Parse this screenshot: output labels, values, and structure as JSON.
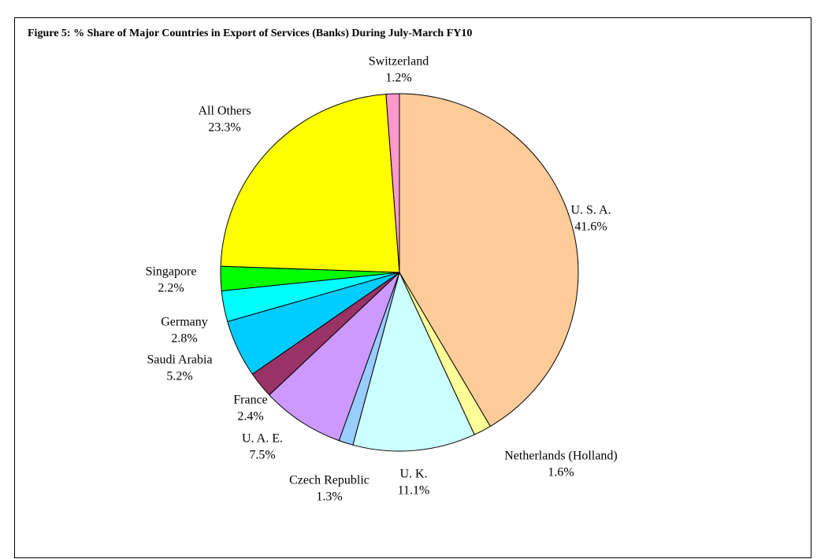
{
  "chart_data": {
    "type": "pie",
    "title": "Figure 5: % Share of Major Countries in Export of Services (Banks) During July-March FY10",
    "categories": [
      "U. S. A.",
      "Netherlands (Holland)",
      "U. K.",
      "Czech Republic",
      "U. A. E.",
      "France",
      "Saudi Arabia",
      "Germany",
      "Singapore",
      "All Others",
      "Switzerland"
    ],
    "values": [
      41.6,
      1.6,
      11.1,
      1.3,
      7.5,
      2.4,
      5.2,
      2.8,
      2.2,
      23.3,
      1.2
    ],
    "value_labels": [
      "41.6%",
      "1.6%",
      "11.1%",
      "1.3%",
      "7.5%",
      "2.4%",
      "5.2%",
      "2.8%",
      "2.2%",
      "23.3%",
      "1.2%"
    ],
    "colors": [
      "#ffcc99",
      "#ffff99",
      "#ccffff",
      "#99ccff",
      "#cc99ff",
      "#993366",
      "#00ccff",
      "#00ffff",
      "#00ff00",
      "#ffff00",
      "#ff99cc"
    ]
  }
}
